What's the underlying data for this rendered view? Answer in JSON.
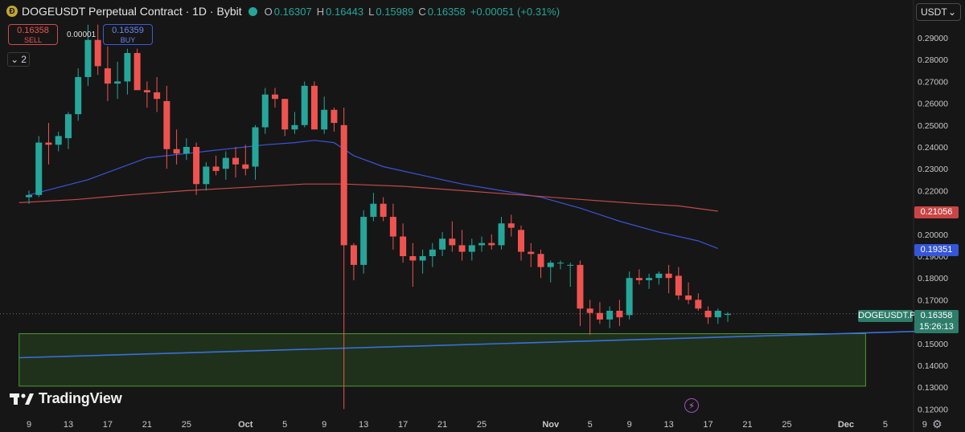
{
  "header": {
    "title": "DOGEUSDT Perpetual Contract · 1D · Bybit",
    "coin_glyph": "Ð",
    "ohlc": [
      {
        "label": "O",
        "value": "0.16307"
      },
      {
        "label": "H",
        "value": "0.16443"
      },
      {
        "label": "L",
        "value": "0.15989"
      },
      {
        "label": "C",
        "value": "0.16358"
      }
    ],
    "change": "+0.00051 (+0.31%)"
  },
  "trade": {
    "sell_price": "0.16358",
    "sell_label": "SELL",
    "buy_price": "0.16359",
    "buy_label": "BUY",
    "spread": "0.00001"
  },
  "indicators_count": "2",
  "currency": "USDT",
  "logo_text": "TradingView",
  "price_labels": {
    "ma_red": "0.21056",
    "ma_blue": "0.19351",
    "symbol": "DOGEUSDT.P",
    "current": "0.16358",
    "countdown": "15:26:13"
  },
  "colors": {
    "up": "#26a69a",
    "down": "#ef5350",
    "ma_blue": "#3b55d9",
    "ma_red": "#c04a4a",
    "trend": "#3a6ee0",
    "zone": "#2a5a22"
  },
  "chart_data": {
    "type": "candlestick",
    "title": "DOGEUSDT Perpetual Contract · 1D · Bybit",
    "ylim": [
      0.12,
      0.293
    ],
    "y_ticks": [
      "0.29000",
      "0.28000",
      "0.27000",
      "0.26000",
      "0.25000",
      "0.24000",
      "0.23000",
      "0.22000",
      "0.21000",
      "0.20000",
      "0.19000",
      "0.18000",
      "0.17000",
      "0.16000",
      "0.15000",
      "0.14000",
      "0.13000",
      "0.12000"
    ],
    "x_ticks": [
      {
        "label": "9",
        "day": 0
      },
      {
        "label": "13",
        "day": 4
      },
      {
        "label": "17",
        "day": 8
      },
      {
        "label": "21",
        "day": 12
      },
      {
        "label": "25",
        "day": 16
      },
      {
        "label": "Oct",
        "day": 22
      },
      {
        "label": "5",
        "day": 26
      },
      {
        "label": "9",
        "day": 30
      },
      {
        "label": "13",
        "day": 34
      },
      {
        "label": "17",
        "day": 38
      },
      {
        "label": "21",
        "day": 42
      },
      {
        "label": "25",
        "day": 46
      },
      {
        "label": "Nov",
        "day": 53
      },
      {
        "label": "5",
        "day": 57
      },
      {
        "label": "9",
        "day": 61
      },
      {
        "label": "13",
        "day": 65
      },
      {
        "label": "17",
        "day": 69
      },
      {
        "label": "21",
        "day": 73
      },
      {
        "label": "25",
        "day": 77
      },
      {
        "label": "Dec",
        "day": 83
      },
      {
        "label": "5",
        "day": 87
      },
      {
        "label": "9",
        "day": 91
      }
    ],
    "x_range_days": [
      -0.5,
      93.5
    ],
    "candles": [
      {
        "o": 0.217,
        "h": 0.22,
        "l": 0.214,
        "c": 0.218
      },
      {
        "o": 0.218,
        "h": 0.245,
        "l": 0.217,
        "c": 0.242
      },
      {
        "o": 0.242,
        "h": 0.251,
        "l": 0.232,
        "c": 0.241
      },
      {
        "o": 0.241,
        "h": 0.247,
        "l": 0.238,
        "c": 0.245
      },
      {
        "o": 0.244,
        "h": 0.256,
        "l": 0.239,
        "c": 0.255
      },
      {
        "o": 0.255,
        "h": 0.276,
        "l": 0.252,
        "c": 0.272
      },
      {
        "o": 0.272,
        "h": 0.296,
        "l": 0.268,
        "c": 0.289
      },
      {
        "o": 0.289,
        "h": 0.296,
        "l": 0.273,
        "c": 0.277
      },
      {
        "o": 0.276,
        "h": 0.286,
        "l": 0.261,
        "c": 0.269
      },
      {
        "o": 0.269,
        "h": 0.279,
        "l": 0.262,
        "c": 0.27
      },
      {
        "o": 0.27,
        "h": 0.285,
        "l": 0.264,
        "c": 0.283
      },
      {
        "o": 0.283,
        "h": 0.285,
        "l": 0.267,
        "c": 0.266
      },
      {
        "o": 0.266,
        "h": 0.27,
        "l": 0.258,
        "c": 0.265
      },
      {
        "o": 0.265,
        "h": 0.272,
        "l": 0.256,
        "c": 0.262
      },
      {
        "o": 0.261,
        "h": 0.268,
        "l": 0.23,
        "c": 0.239
      },
      {
        "o": 0.239,
        "h": 0.248,
        "l": 0.232,
        "c": 0.237
      },
      {
        "o": 0.237,
        "h": 0.244,
        "l": 0.234,
        "c": 0.24
      },
      {
        "o": 0.24,
        "h": 0.242,
        "l": 0.218,
        "c": 0.223
      },
      {
        "o": 0.223,
        "h": 0.233,
        "l": 0.22,
        "c": 0.231
      },
      {
        "o": 0.231,
        "h": 0.236,
        "l": 0.227,
        "c": 0.229
      },
      {
        "o": 0.23,
        "h": 0.238,
        "l": 0.225,
        "c": 0.235
      },
      {
        "o": 0.235,
        "h": 0.24,
        "l": 0.226,
        "c": 0.232
      },
      {
        "o": 0.232,
        "h": 0.241,
        "l": 0.227,
        "c": 0.23
      },
      {
        "o": 0.231,
        "h": 0.25,
        "l": 0.225,
        "c": 0.249
      },
      {
        "o": 0.249,
        "h": 0.267,
        "l": 0.246,
        "c": 0.264
      },
      {
        "o": 0.264,
        "h": 0.267,
        "l": 0.258,
        "c": 0.262
      },
      {
        "o": 0.262,
        "h": 0.262,
        "l": 0.245,
        "c": 0.248
      },
      {
        "o": 0.248,
        "h": 0.256,
        "l": 0.246,
        "c": 0.25
      },
      {
        "o": 0.25,
        "h": 0.27,
        "l": 0.249,
        "c": 0.268
      },
      {
        "o": 0.268,
        "h": 0.27,
        "l": 0.248,
        "c": 0.248
      },
      {
        "o": 0.248,
        "h": 0.263,
        "l": 0.246,
        "c": 0.257
      },
      {
        "o": 0.257,
        "h": 0.258,
        "l": 0.247,
        "c": 0.251
      },
      {
        "o": 0.25,
        "h": 0.258,
        "l": 0.12,
        "c": 0.195
      },
      {
        "o": 0.195,
        "h": 0.196,
        "l": 0.179,
        "c": 0.186
      },
      {
        "o": 0.186,
        "h": 0.211,
        "l": 0.182,
        "c": 0.208
      },
      {
        "o": 0.208,
        "h": 0.219,
        "l": 0.206,
        "c": 0.214
      },
      {
        "o": 0.214,
        "h": 0.217,
        "l": 0.206,
        "c": 0.208
      },
      {
        "o": 0.208,
        "h": 0.214,
        "l": 0.193,
        "c": 0.199
      },
      {
        "o": 0.199,
        "h": 0.205,
        "l": 0.187,
        "c": 0.19
      },
      {
        "o": 0.19,
        "h": 0.196,
        "l": 0.176,
        "c": 0.188
      },
      {
        "o": 0.188,
        "h": 0.193,
        "l": 0.182,
        "c": 0.19
      },
      {
        "o": 0.19,
        "h": 0.196,
        "l": 0.185,
        "c": 0.193
      },
      {
        "o": 0.193,
        "h": 0.201,
        "l": 0.19,
        "c": 0.198
      },
      {
        "o": 0.198,
        "h": 0.206,
        "l": 0.192,
        "c": 0.195
      },
      {
        "o": 0.195,
        "h": 0.202,
        "l": 0.188,
        "c": 0.192
      },
      {
        "o": 0.192,
        "h": 0.198,
        "l": 0.188,
        "c": 0.195
      },
      {
        "o": 0.195,
        "h": 0.199,
        "l": 0.192,
        "c": 0.196
      },
      {
        "o": 0.196,
        "h": 0.2,
        "l": 0.193,
        "c": 0.195
      },
      {
        "o": 0.195,
        "h": 0.208,
        "l": 0.193,
        "c": 0.205
      },
      {
        "o": 0.205,
        "h": 0.209,
        "l": 0.199,
        "c": 0.203
      },
      {
        "o": 0.202,
        "h": 0.204,
        "l": 0.188,
        "c": 0.192
      },
      {
        "o": 0.192,
        "h": 0.196,
        "l": 0.185,
        "c": 0.191
      },
      {
        "o": 0.191,
        "h": 0.193,
        "l": 0.18,
        "c": 0.185
      },
      {
        "o": 0.185,
        "h": 0.188,
        "l": 0.178,
        "c": 0.187
      },
      {
        "o": 0.187,
        "h": 0.188,
        "l": 0.184,
        "c": 0.187
      },
      {
        "o": 0.186,
        "h": 0.187,
        "l": 0.176,
        "c": 0.186
      },
      {
        "o": 0.186,
        "h": 0.188,
        "l": 0.158,
        "c": 0.166
      },
      {
        "o": 0.166,
        "h": 0.17,
        "l": 0.154,
        "c": 0.164
      },
      {
        "o": 0.164,
        "h": 0.169,
        "l": 0.159,
        "c": 0.161
      },
      {
        "o": 0.161,
        "h": 0.167,
        "l": 0.157,
        "c": 0.165
      },
      {
        "o": 0.165,
        "h": 0.17,
        "l": 0.158,
        "c": 0.162
      },
      {
        "o": 0.163,
        "h": 0.183,
        "l": 0.161,
        "c": 0.18
      },
      {
        "o": 0.18,
        "h": 0.184,
        "l": 0.177,
        "c": 0.179
      },
      {
        "o": 0.179,
        "h": 0.182,
        "l": 0.175,
        "c": 0.18
      },
      {
        "o": 0.18,
        "h": 0.183,
        "l": 0.177,
        "c": 0.182
      },
      {
        "o": 0.182,
        "h": 0.186,
        "l": 0.173,
        "c": 0.18
      },
      {
        "o": 0.181,
        "h": 0.185,
        "l": 0.17,
        "c": 0.172
      },
      {
        "o": 0.172,
        "h": 0.178,
        "l": 0.168,
        "c": 0.17
      },
      {
        "o": 0.17,
        "h": 0.173,
        "l": 0.165,
        "c": 0.166
      },
      {
        "o": 0.165,
        "h": 0.167,
        "l": 0.159,
        "c": 0.162
      },
      {
        "o": 0.162,
        "h": 0.166,
        "l": 0.159,
        "c": 0.165
      },
      {
        "o": 0.1631,
        "h": 0.1644,
        "l": 0.1599,
        "c": 0.1636
      }
    ],
    "series": [
      {
        "name": "MA (blue)",
        "values": [
          [
            0,
            0.218
          ],
          [
            6,
            0.225
          ],
          [
            12,
            0.235
          ],
          [
            18,
            0.238
          ],
          [
            24,
            0.241
          ],
          [
            27,
            0.242
          ],
          [
            29,
            0.243
          ],
          [
            31,
            0.242
          ],
          [
            33,
            0.236
          ],
          [
            36,
            0.231
          ],
          [
            40,
            0.227
          ],
          [
            44,
            0.223
          ],
          [
            48,
            0.22
          ],
          [
            52,
            0.217
          ],
          [
            56,
            0.212
          ],
          [
            60,
            0.206
          ],
          [
            64,
            0.201
          ],
          [
            68,
            0.197
          ],
          [
            70,
            0.1935
          ]
        ]
      },
      {
        "name": "MA (red)",
        "values": [
          [
            -1,
            0.2145
          ],
          [
            5,
            0.216
          ],
          [
            10,
            0.218
          ],
          [
            16,
            0.22
          ],
          [
            22,
            0.2215
          ],
          [
            28,
            0.223
          ],
          [
            32,
            0.223
          ],
          [
            38,
            0.222
          ],
          [
            44,
            0.22
          ],
          [
            50,
            0.218
          ],
          [
            56,
            0.216
          ],
          [
            62,
            0.214
          ],
          [
            66,
            0.213
          ],
          [
            70,
            0.2106
          ]
        ]
      },
      {
        "name": "Trendline",
        "values": [
          [
            -1,
            0.1435
          ],
          [
            93.5,
            0.156
          ]
        ]
      }
    ],
    "zone": {
      "y_low": 0.1305,
      "y_high": 0.1545,
      "day_start": -1,
      "day_end": 85
    }
  }
}
